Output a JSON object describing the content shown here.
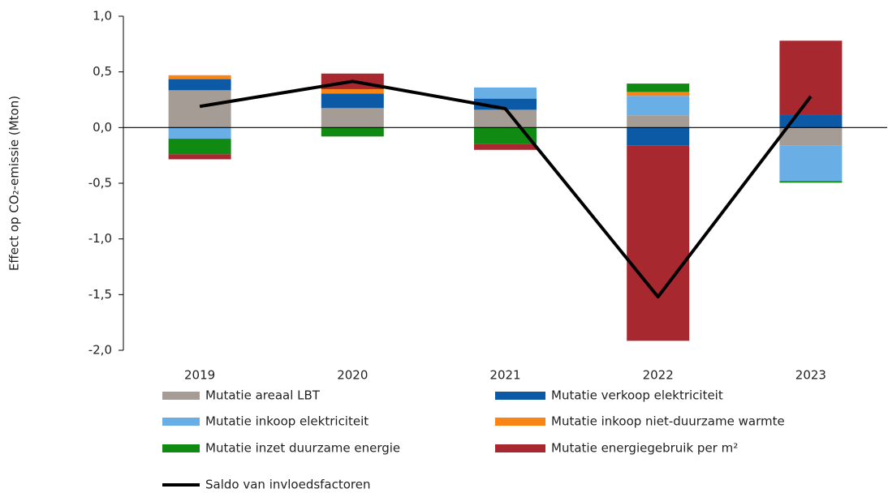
{
  "chart_data": {
    "type": "bar",
    "stacked": true,
    "y_label": "Effect op CO₂-emissie (Mton)",
    "categories": [
      "2019",
      "2020",
      "2021",
      "2022",
      "2023"
    ],
    "ylim": [
      -2.0,
      1.0
    ],
    "yticks": [
      {
        "value": 1.0,
        "label": "1,0"
      },
      {
        "value": 0.5,
        "label": "0,5"
      },
      {
        "value": 0.0,
        "label": "0,0"
      },
      {
        "value": -0.5,
        "label": "-0,5"
      },
      {
        "value": -1.0,
        "label": "-1,0"
      },
      {
        "value": -1.5,
        "label": "-1,5"
      },
      {
        "value": -2.0,
        "label": "-2,0"
      }
    ],
    "series": [
      {
        "name": "Mutatie areaal LBT",
        "color": "#a59d95",
        "values": [
          0.335,
          0.175,
          0.16,
          0.11,
          -0.16
        ]
      },
      {
        "name": "Mutatie verkoop elektriciteit",
        "color": "#0c59a5",
        "values": [
          0.1,
          0.13,
          0.1,
          -0.16,
          0.115
        ]
      },
      {
        "name": "Mutatie inkoop elektriciteit",
        "color": "#6aaee6",
        "values": [
          -0.1,
          0,
          0.1,
          0.175,
          -0.32
        ]
      },
      {
        "name": "Mutatie inkoop niet-duurzame warmte",
        "color": "#f98517",
        "values": [
          0.035,
          0.04,
          0,
          0.035,
          0
        ]
      },
      {
        "name": "Mutatie inzet duurzame energie",
        "color": "#108a12",
        "values": [
          -0.14,
          -0.08,
          -0.145,
          0.075,
          -0.015
        ]
      },
      {
        "name": "Mutatie energiegebruik per m²",
        "color": "#a8282f",
        "values": [
          -0.045,
          0.14,
          -0.055,
          -1.755,
          0.665
        ]
      },
      {
        "name": "Saldo van invloedsfactoren",
        "type": "line",
        "color": "#000000",
        "values": [
          0.19,
          0.415,
          0.17,
          -1.52,
          0.28
        ]
      }
    ]
  }
}
